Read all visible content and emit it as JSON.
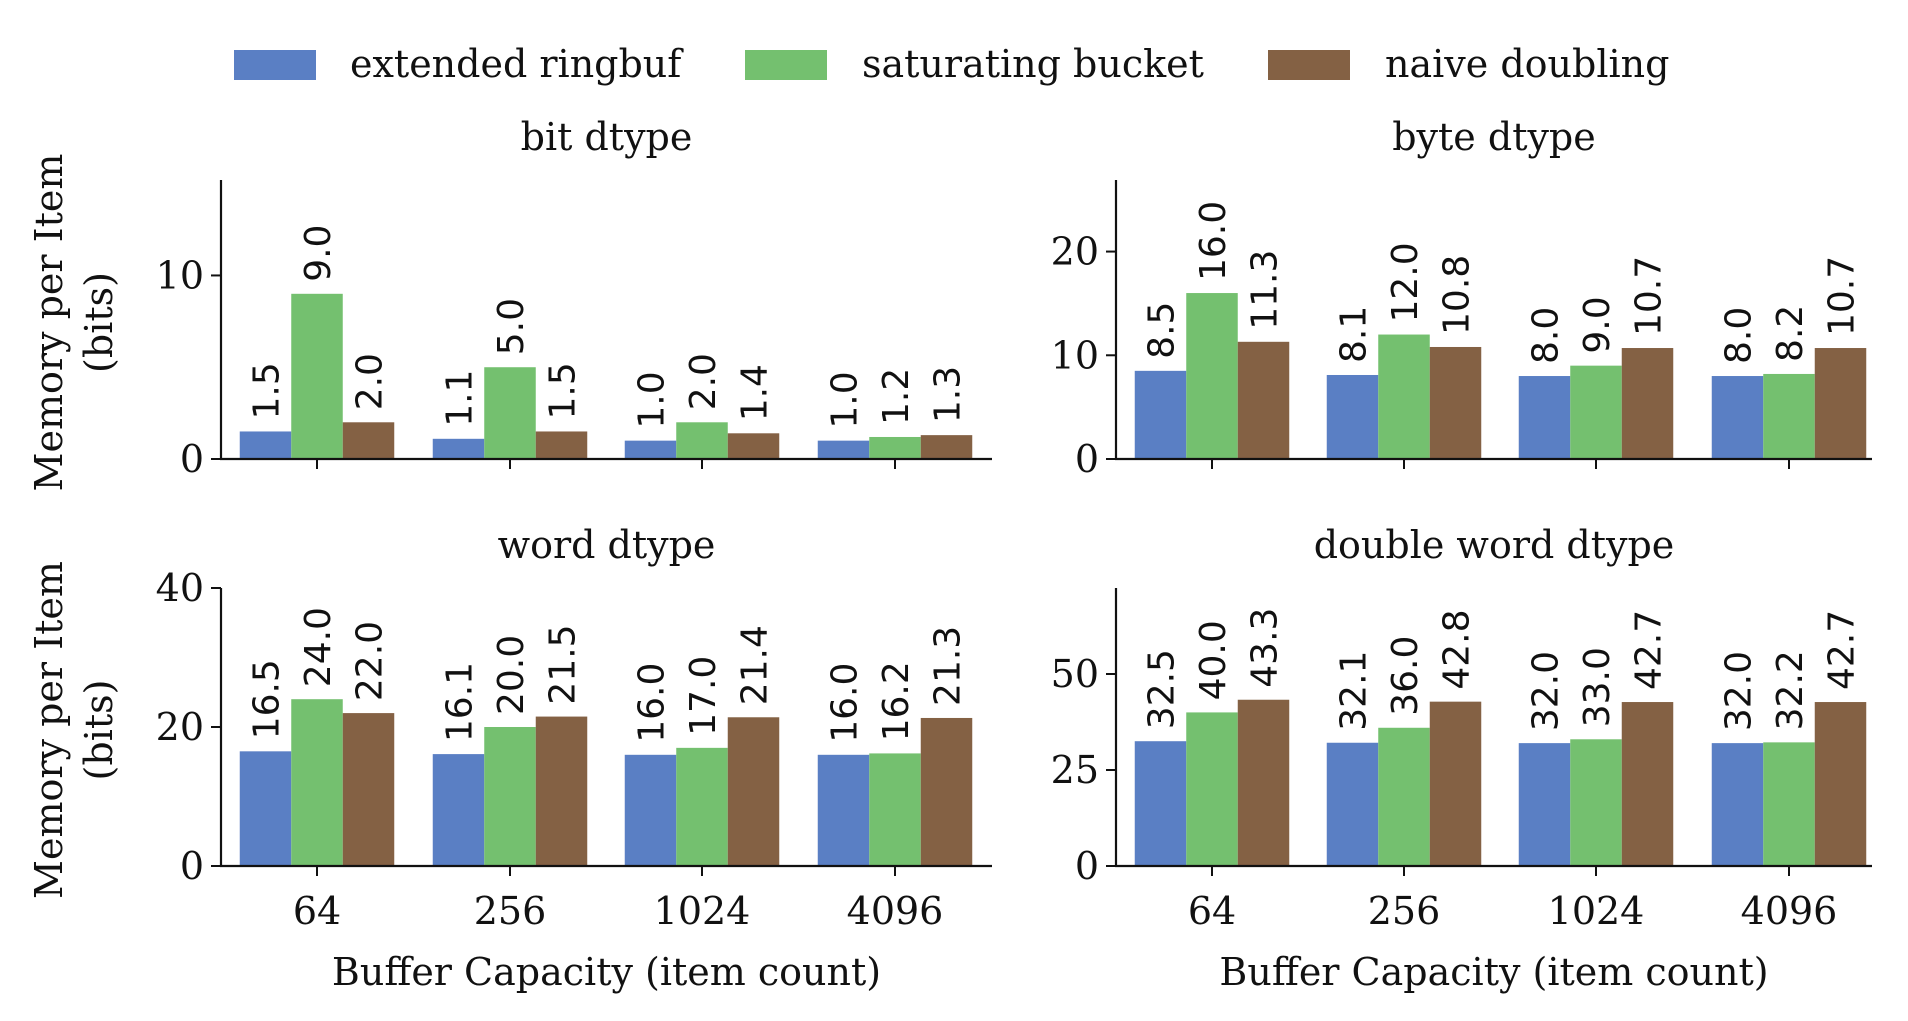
{
  "legend": [
    {
      "name": "extended ringbuf",
      "color": "#5a7fc4"
    },
    {
      "name": "saturating bucket",
      "color": "#74c06f"
    },
    {
      "name": "naive doubling",
      "color": "#846144"
    }
  ],
  "chart_data": [
    {
      "type": "bar",
      "title": "bit dtype",
      "categories": [
        "64",
        "256",
        "1024",
        "4096"
      ],
      "ylabel_lines": [
        "Memory per Item",
        "(bits)"
      ],
      "xlabel": "",
      "ylim": [
        0,
        15.2
      ],
      "yticks": [
        0,
        10
      ],
      "series": [
        {
          "name": "extended ringbuf",
          "values": [
            1.5,
            1.1,
            1.0,
            1.0
          ],
          "labels": [
            "1.5",
            "1.1",
            "1.0",
            "1.0"
          ]
        },
        {
          "name": "saturating bucket",
          "values": [
            9.0,
            5.0,
            2.0,
            1.2
          ],
          "labels": [
            "9.0",
            "5.0",
            "2.0",
            "1.2"
          ]
        },
        {
          "name": "naive doubling",
          "values": [
            2.0,
            1.5,
            1.4,
            1.3
          ],
          "labels": [
            "2.0",
            "1.5",
            "1.4",
            "1.3"
          ]
        }
      ]
    },
    {
      "type": "bar",
      "title": "byte dtype",
      "categories": [
        "64",
        "256",
        "1024",
        "4096"
      ],
      "ylabel_lines": [],
      "xlabel": "",
      "ylim": [
        0,
        26.9
      ],
      "yticks": [
        0,
        10,
        20
      ],
      "series": [
        {
          "name": "extended ringbuf",
          "values": [
            8.5,
            8.1,
            8.0,
            8.0
          ],
          "labels": [
            "8.5",
            "8.1",
            "8.0",
            "8.0"
          ]
        },
        {
          "name": "saturating bucket",
          "values": [
            16.0,
            12.0,
            9.0,
            8.2
          ],
          "labels": [
            "16.0",
            "12.0",
            "9.0",
            "8.2"
          ]
        },
        {
          "name": "naive doubling",
          "values": [
            11.3,
            10.8,
            10.7,
            10.7
          ],
          "labels": [
            "11.3",
            "10.8",
            "10.7",
            "10.7"
          ]
        }
      ]
    },
    {
      "type": "bar",
      "title": "word dtype",
      "categories": [
        "64",
        "256",
        "1024",
        "4096"
      ],
      "ylabel_lines": [
        "Memory per Item",
        "(bits)"
      ],
      "xlabel": "Buffer Capacity (item count)",
      "ylim": [
        0,
        40
      ],
      "yticks": [
        0,
        20,
        40
      ],
      "series": [
        {
          "name": "extended ringbuf",
          "values": [
            16.5,
            16.1,
            16.0,
            16.0
          ],
          "labels": [
            "16.5",
            "16.1",
            "16.0",
            "16.0"
          ]
        },
        {
          "name": "saturating bucket",
          "values": [
            24.0,
            20.0,
            17.0,
            16.2
          ],
          "labels": [
            "24.0",
            "20.0",
            "17.0",
            "16.2"
          ]
        },
        {
          "name": "naive doubling",
          "values": [
            22.0,
            21.5,
            21.4,
            21.3
          ],
          "labels": [
            "22.0",
            "21.5",
            "21.4",
            "21.3"
          ]
        }
      ]
    },
    {
      "type": "bar",
      "title": "double word dtype",
      "categories": [
        "64",
        "256",
        "1024",
        "4096"
      ],
      "ylabel_lines": [],
      "xlabel": "Buffer Capacity (item count)",
      "ylim": [
        0,
        72.4
      ],
      "yticks": [
        0,
        25,
        50
      ],
      "series": [
        {
          "name": "extended ringbuf",
          "values": [
            32.5,
            32.1,
            32.0,
            32.0
          ],
          "labels": [
            "32.5",
            "32.1",
            "32.0",
            "32.0"
          ]
        },
        {
          "name": "saturating bucket",
          "values": [
            40.0,
            36.0,
            33.0,
            32.2
          ],
          "labels": [
            "40.0",
            "36.0",
            "33.0",
            "32.2"
          ]
        },
        {
          "name": "naive doubling",
          "values": [
            43.3,
            42.8,
            42.7,
            42.7
          ],
          "labels": [
            "43.3",
            "42.8",
            "42.7",
            "42.7"
          ]
        }
      ]
    }
  ]
}
